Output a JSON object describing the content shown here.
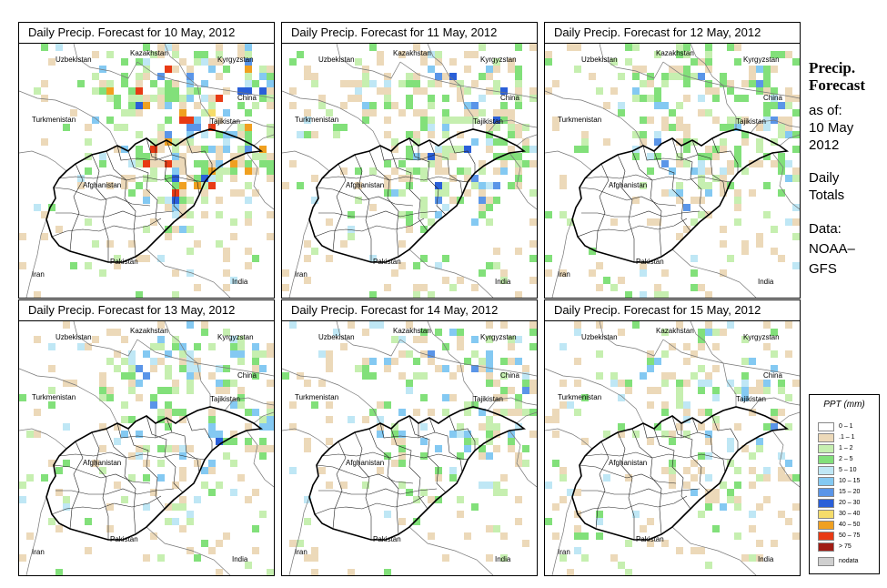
{
  "panels": [
    {
      "title": "Daily Precip. Forecast for  10 May, 2012",
      "seed": 11,
      "intensity": 1.0
    },
    {
      "title": "Daily Precip. Forecast for  11 May, 2012",
      "seed": 23,
      "intensity": 0.9
    },
    {
      "title": "Daily Precip. Forecast for  12 May, 2012",
      "seed": 37,
      "intensity": 0.75
    },
    {
      "title": "Daily Precip. Forecast for  13 May, 2012",
      "seed": 41,
      "intensity": 0.6
    },
    {
      "title": "Daily Precip. Forecast for  14 May, 2012",
      "seed": 53,
      "intensity": 0.5
    },
    {
      "title": "Daily Precip. Forecast for  15 May, 2012",
      "seed": 67,
      "intensity": 0.4
    }
  ],
  "country_labels": {
    "kazakhstan": "Kazakhstan",
    "uzbekistan": "Uzbekistan",
    "kyrgyzstan": "Kyrgyzstan",
    "china": "China",
    "turkmenistan": "Turkmenistan",
    "tajikistan": "Tajikistan",
    "afghanistan": "Afghanistan",
    "pakistan": "Pakistan",
    "iran": "Iran",
    "india": "India"
  },
  "sidebar": {
    "title_line1": "Precip.",
    "title_line2": "Forecast",
    "asof_line1": "as of:",
    "asof_line2": "10 May",
    "asof_line3": "2012",
    "daily_line1": "Daily",
    "daily_line2": "Totals",
    "data_line1": "Data:",
    "data_line2": "NOAA–",
    "data_line3": "GFS"
  },
  "legend": {
    "title": "PPT (mm)",
    "items": [
      {
        "label": "0 – 1",
        "color": "#ffffff"
      },
      {
        "label": ".1 – 1",
        "color": "#ecd9b9"
      },
      {
        "label": "1 – 2",
        "color": "#c6efb0"
      },
      {
        "label": "2 – 5",
        "color": "#82e07a"
      },
      {
        "label": "5 – 10",
        "color": "#bfe7f5"
      },
      {
        "label": "10 – 15",
        "color": "#84c9f2"
      },
      {
        "label": "15 – 20",
        "color": "#5a95e8"
      },
      {
        "label": "20 – 30",
        "color": "#2a5fd8"
      },
      {
        "label": "30 – 40",
        "color": "#f5dc6a"
      },
      {
        "label": "40 – 50",
        "color": "#f0a020"
      },
      {
        "label": "50 – 75",
        "color": "#e83a14"
      },
      {
        "label": "> 75",
        "color": "#a01c14"
      },
      {
        "label": "nodata",
        "color": "#cfcfcf"
      }
    ]
  }
}
